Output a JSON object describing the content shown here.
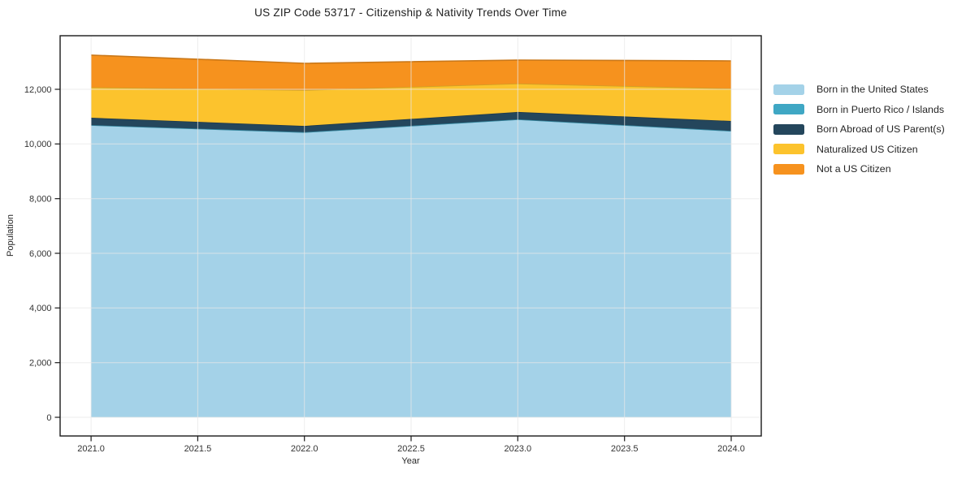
{
  "figure": {
    "title": "US ZIP Code 53717 - Citizenship & Nativity Trends Over Time",
    "xlabel": "Year",
    "ylabel": "Population"
  },
  "chart_data": {
    "type": "area",
    "stacked": true,
    "title": "US ZIP Code 53717 - Citizenship & Nativity Trends Over Time",
    "xlabel": "Year",
    "ylabel": "Population",
    "x": [
      2021,
      2022,
      2023,
      2024
    ],
    "series": [
      {
        "name": "Born in the United States",
        "color": "#a4d2e8",
        "values": [
          10690,
          10430,
          10900,
          10480
        ]
      },
      {
        "name": "Born in Puerto Rico / Islands",
        "color": "#3fa7c4",
        "values": [
          0,
          0,
          0,
          0
        ]
      },
      {
        "name": "Born Abroad of US Parent(s)",
        "color": "#24465c",
        "values": [
          270,
          230,
          270,
          360
        ]
      },
      {
        "name": "Naturalized US Citizen",
        "color": "#fcc32d",
        "values": [
          1110,
          1310,
          1040,
          1190
        ]
      },
      {
        "name": "Not a US Citizen",
        "color": "#f6921e",
        "values": [
          1180,
          980,
          860,
          1010
        ]
      }
    ],
    "x_ticks": [
      2021.0,
      2021.5,
      2022.0,
      2022.5,
      2023.0,
      2023.5,
      2024.0
    ],
    "x_tick_labels": [
      "2021.0",
      "2021.5",
      "2022.0",
      "2022.5",
      "2023.0",
      "2023.5",
      "2024.0"
    ],
    "y_ticks": [
      0,
      2000,
      4000,
      6000,
      8000,
      10000,
      12000
    ],
    "y_tick_labels": [
      "0",
      "2,000",
      "4,000",
      "6,000",
      "8,000",
      "10,000",
      "12,000"
    ],
    "xlim": [
      2020.855,
      2024.141
    ],
    "ylim": [
      -683,
      13960
    ],
    "grid": true,
    "legend_position": "right",
    "colors": {
      "frame": "#1a1a1a",
      "gridline": "#e7e7e7",
      "tick_label": "#333333"
    }
  }
}
